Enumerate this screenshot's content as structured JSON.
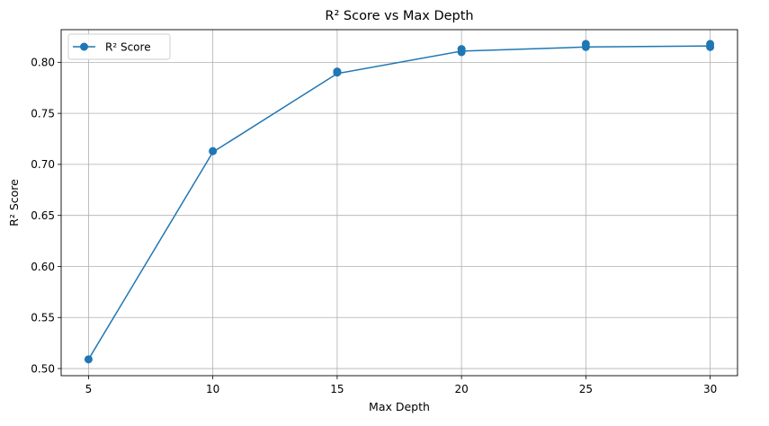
{
  "chart_data": {
    "type": "line",
    "title": "R² Score vs Max Depth",
    "xlabel": "Max Depth",
    "ylabel": "R² Score",
    "xlim": [
      3.9,
      31.1
    ],
    "ylim": [
      0.493,
      0.832
    ],
    "x_ticks": [
      5,
      10,
      15,
      20,
      25,
      30
    ],
    "y_ticks": [
      0.5,
      0.55,
      0.6,
      0.65,
      0.7,
      0.75,
      0.8
    ],
    "y_tick_labels": [
      "0.50",
      "0.55",
      "0.60",
      "0.65",
      "0.70",
      "0.75",
      "0.80"
    ],
    "grid": true,
    "legend_position": "top-left",
    "color": "#1f77b4",
    "series": [
      {
        "name": "R² Score",
        "x": [
          5,
          10,
          15,
          20,
          25,
          30
        ],
        "y": [
          0.509,
          0.712,
          0.789,
          0.811,
          0.815,
          0.816
        ]
      }
    ],
    "repeated_markers": [
      {
        "x": 5,
        "y": 0.509
      },
      {
        "x": 10,
        "y": 0.713
      },
      {
        "x": 15,
        "y": 0.79
      },
      {
        "x": 15,
        "y": 0.791
      },
      {
        "x": 20,
        "y": 0.813
      },
      {
        "x": 20,
        "y": 0.81
      },
      {
        "x": 25,
        "y": 0.818
      },
      {
        "x": 25,
        "y": 0.815
      },
      {
        "x": 30,
        "y": 0.818
      },
      {
        "x": 30,
        "y": 0.815
      }
    ]
  }
}
